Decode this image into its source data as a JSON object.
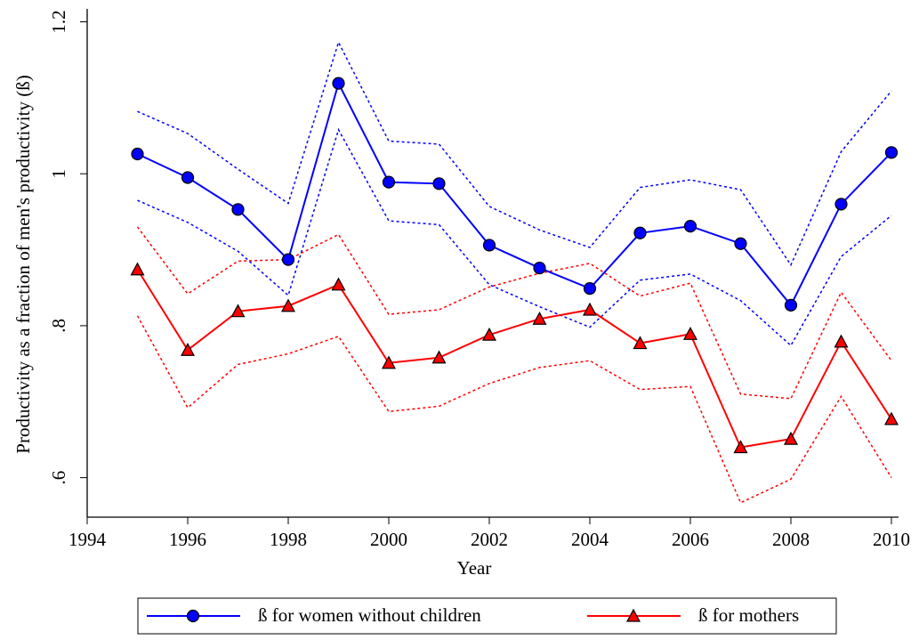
{
  "chart_data": {
    "type": "line",
    "x_label": "Year",
    "y_label": "Productivity as a fraction of men's productivity (ß)",
    "x": [
      1995,
      1996,
      1997,
      1998,
      1999,
      2000,
      2001,
      2002,
      2003,
      2004,
      2005,
      2006,
      2007,
      2008,
      2009,
      2010
    ],
    "xlim": [
      1994,
      2010
    ],
    "xticks": [
      1994,
      1996,
      1998,
      2000,
      2002,
      2004,
      2006,
      2008,
      2010
    ],
    "ylim": [
      0.548,
      1.217
    ],
    "yticks": [
      {
        "value": 0.6,
        "label": ".6"
      },
      {
        "value": 0.8,
        "label": ".8"
      },
      1,
      1.2
    ],
    "series": [
      {
        "name": "ß for women without children",
        "color": "#0000ff",
        "marker": "circle",
        "values": [
          1.026,
          0.995,
          0.953,
          0.887,
          1.119,
          0.989,
          0.987,
          0.906,
          0.876,
          0.849,
          0.922,
          0.931,
          0.908,
          0.827,
          0.96,
          1.028
        ],
        "ci_upper": [
          1.082,
          1.053,
          1.006,
          0.961,
          1.173,
          1.043,
          1.039,
          0.957,
          0.926,
          0.903,
          0.982,
          0.992,
          0.979,
          0.88,
          1.029,
          1.109
        ],
        "ci_lower": [
          0.965,
          0.936,
          0.898,
          0.84,
          1.058,
          0.938,
          0.933,
          0.854,
          0.825,
          0.798,
          0.86,
          0.868,
          0.833,
          0.774,
          0.891,
          0.945
        ]
      },
      {
        "name": "ß for mothers",
        "color": "#ff0000",
        "marker": "triangle",
        "values": [
          0.874,
          0.768,
          0.819,
          0.826,
          0.854,
          0.751,
          0.758,
          0.788,
          0.809,
          0.821,
          0.777,
          0.789,
          0.64,
          0.651,
          0.779,
          0.677
        ],
        "ci_upper": [
          0.93,
          0.842,
          0.885,
          0.887,
          0.92,
          0.815,
          0.821,
          0.851,
          0.869,
          0.882,
          0.839,
          0.856,
          0.71,
          0.704,
          0.844,
          0.754
        ],
        "ci_lower": [
          0.813,
          0.692,
          0.749,
          0.763,
          0.786,
          0.687,
          0.694,
          0.724,
          0.745,
          0.754,
          0.716,
          0.72,
          0.567,
          0.598,
          0.707,
          0.6
        ]
      }
    ]
  }
}
